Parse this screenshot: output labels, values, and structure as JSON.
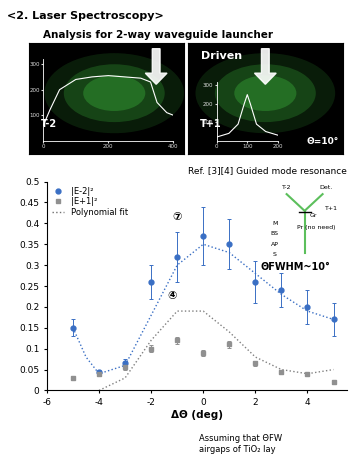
{
  "header": {
    "title": "<2. Laser Spectroscopy>",
    "subtitle": "Analysis for 2-way waveguide launcher"
  },
  "images": [
    {
      "label": "T-2",
      "inset": {
        "x": [
          0,
          20,
          50,
          100,
          150,
          200,
          250,
          300,
          330,
          350,
          380,
          400
        ],
        "y": [
          60,
          120,
          200,
          240,
          250,
          255,
          250,
          245,
          230,
          150,
          110,
          100
        ],
        "xlim": [
          0,
          400
        ],
        "xticks": [
          0,
          200,
          400
        ],
        "ylim": [
          0,
          320
        ],
        "yticks": [
          100,
          200,
          300
        ]
      }
    },
    {
      "label": "T+1",
      "caption": "Driven",
      "angle": "Θ=10°",
      "inset": {
        "x": [
          0,
          40,
          70,
          90,
          100,
          110,
          130,
          160,
          200
        ],
        "y": [
          20,
          40,
          90,
          200,
          250,
          200,
          90,
          50,
          30
        ],
        "xlim": [
          0,
          200
        ],
        "xticks": [
          0,
          100,
          200
        ],
        "ylim": [
          0,
          320
        ],
        "yticks": [
          100,
          200,
          300
        ]
      }
    }
  ],
  "reference": "Ref. [3][4] Guided mode resonance",
  "chart_data": {
    "type": "scatter",
    "x_label": "ΔΘ (deg)",
    "xlim": [
      -6,
      5.5
    ],
    "xticks": [
      -6,
      -4,
      -2,
      0,
      2,
      4
    ],
    "ylim": [
      0,
      0.5
    ],
    "yticks": [
      0,
      0.05,
      0.1,
      0.15,
      0.2,
      0.25,
      0.3,
      0.35,
      0.4,
      0.45,
      0.5
    ],
    "legend": "upper left",
    "grid": false,
    "series": [
      {
        "name": "|E-2|²",
        "color": "#3a6fc4",
        "marker": "circle",
        "x": [
          -5,
          -4,
          -3,
          -2,
          -1,
          0,
          1,
          2,
          3,
          4,
          5
        ],
        "values": [
          0.15,
          0.045,
          0.065,
          0.26,
          0.32,
          0.37,
          0.35,
          0.26,
          0.24,
          0.2,
          0.17
        ],
        "errors": [
          0.02,
          0.005,
          0.01,
          0.04,
          0.06,
          0.07,
          0.06,
          0.05,
          0.04,
          0.04,
          0.04
        ]
      },
      {
        "name": "|E+1|²",
        "color": "#909090",
        "marker": "square",
        "x": [
          -5,
          -4,
          -3,
          -2,
          -1,
          0,
          1,
          2,
          3,
          4,
          5
        ],
        "values": [
          0.03,
          0.04,
          0.055,
          0.1,
          0.12,
          0.09,
          0.11,
          0.065,
          0.045,
          0.04,
          0.02
        ],
        "errors": [
          0.005,
          0.005,
          0.005,
          0.008,
          0.008,
          0.008,
          0.008,
          0.006,
          0.005,
          0.005,
          0.005
        ]
      },
      {
        "name": "Polynomial fit",
        "type": "line",
        "line_style": "dotted",
        "curves": [
          {
            "color": "#3a6fc4",
            "x": [
              -5,
              -4.5,
              -4,
              -3,
              -2,
              -1,
              0,
              1,
              2,
              3,
              4,
              5
            ],
            "values": [
              0.15,
              0.08,
              0.04,
              0.06,
              0.18,
              0.3,
              0.35,
              0.33,
              0.28,
              0.23,
              0.19,
              0.17
            ]
          },
          {
            "color": "#808080",
            "x": [
              -4,
              -3,
              -2,
              -1,
              0,
              1,
              2,
              3,
              4,
              5
            ],
            "values": [
              0.0,
              0.03,
              0.12,
              0.19,
              0.19,
              0.14,
              0.08,
              0.05,
              0.04,
              0.05
            ]
          }
        ]
      }
    ],
    "annotations": [
      {
        "text": "⑦",
        "x": -1,
        "y": 0.415
      },
      {
        "text": "④",
        "x": -1.2,
        "y": 0.225
      },
      {
        "text": "ΘFWHM~10°",
        "x": 2.2,
        "y": 0.295
      }
    ],
    "setup_labels": [
      "T-2",
      "Det.",
      "T+1",
      "Gr",
      "Pr (no need)",
      "M",
      "BS",
      "AP",
      "S"
    ],
    "footnote": [
      "Assuming that ΘFW",
      "airgaps of TiO₂ lay"
    ]
  }
}
